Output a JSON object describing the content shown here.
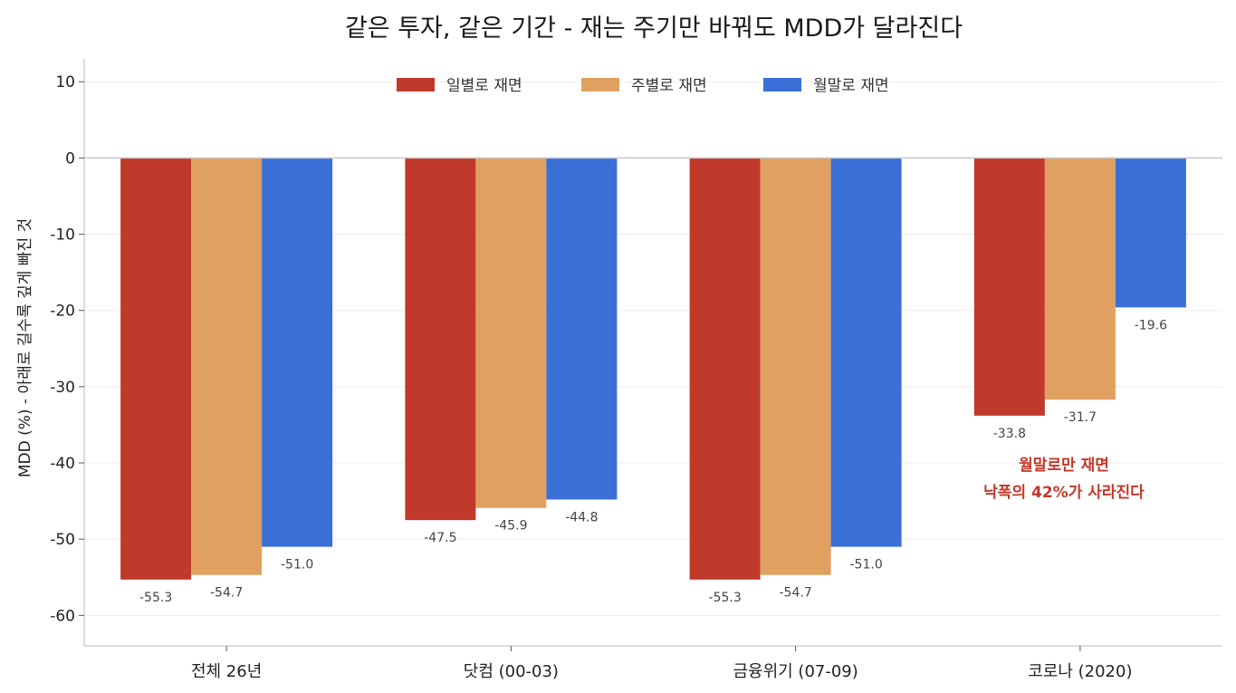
{
  "chart_data": {
    "type": "bar",
    "title": "같은 투자, 같은 기간 - 재는 주기만 바꿔도 MDD가 달라진다",
    "ylabel": "MDD (%)  - 아래로 길수록 깊게 빠진 것",
    "xlabel": "",
    "categories": [
      "전체 26년",
      "닷컴 (00-03)",
      "금융위기 (07-09)",
      "코로나 (2020)"
    ],
    "series": [
      {
        "name": "일별로 재면",
        "color": "#c0392b",
        "values": [
          -55.3,
          -47.5,
          -55.3,
          -33.8
        ]
      },
      {
        "name": "주별로 재면",
        "color": "#e0a060",
        "values": [
          -54.7,
          -45.9,
          -54.7,
          -31.7
        ]
      },
      {
        "name": "월말로 재면",
        "color": "#3a6fd8",
        "values": [
          -51.0,
          -44.8,
          -51.0,
          -19.6
        ]
      }
    ],
    "data_labels": [
      [
        "-55.3",
        "-47.5",
        "-55.3",
        "-33.8"
      ],
      [
        "-54.7",
        "-45.9",
        "-54.7",
        "-31.7"
      ],
      [
        "-51.0",
        "-44.8",
        "-51.0",
        "-19.6"
      ]
    ],
    "ylim": [
      -64,
      13
    ],
    "yticks": [
      10,
      0,
      -10,
      -20,
      -30,
      -40,
      -50,
      -60
    ],
    "ytick_labels": [
      "10",
      "0",
      "-10",
      "-20",
      "-30",
      "-40",
      "-50",
      "-60"
    ],
    "grid": "horizontal",
    "legend_position": "top-center",
    "annotation": {
      "lines": [
        "월말로만 재면",
        "낙폭의 42%가 사라진다"
      ],
      "color": "#c0392b"
    }
  }
}
